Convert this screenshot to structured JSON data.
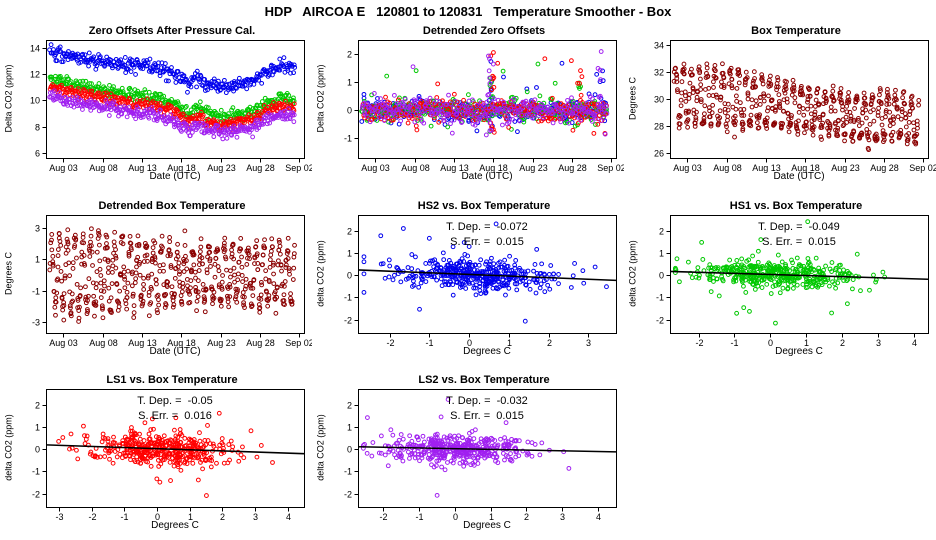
{
  "page_title": "HDP   AIRCOA E   120801 to 120831   Temperature Smoother - Box",
  "colors": {
    "blue": "#0000ee",
    "green": "#00c800",
    "red": "#ff0000",
    "purple": "#a020f0",
    "darkred": "#8b0000",
    "axis": "#000000"
  },
  "chart_data": [
    {
      "id": "zero-offsets",
      "type": "scatter",
      "title": "Zero Offsets After Pressure Cal.",
      "xlabel": "Date (UTC)",
      "ylabel": "Delta CO2 (ppm)",
      "xlim": [
        0.8,
        33.6
      ],
      "ylim": [
        5.6,
        14.6
      ],
      "xticks": {
        "pos": [
          3,
          8,
          13,
          18,
          23,
          28,
          33
        ],
        "labels": [
          "Aug 03",
          "Aug 08",
          "Aug 13",
          "Aug 18",
          "Aug 23",
          "Aug 28",
          "Sep 02"
        ]
      },
      "yticks": {
        "pos": [
          6,
          8,
          10,
          12,
          14
        ],
        "labels": [
          "6",
          "8",
          "10",
          "12",
          "14"
        ]
      },
      "series": [
        {
          "name": "HS2",
          "color": "blue",
          "kind": "trend",
          "n": 340,
          "noise": 0.27,
          "daily": 0.1,
          "xrange": [
            1.3,
            32.4
          ],
          "trend": [
            [
              1,
              13.7
            ],
            [
              5,
              13.2
            ],
            [
              9,
              12.9
            ],
            [
              13,
              12.6
            ],
            [
              16,
              12.3
            ],
            [
              18,
              11.7
            ],
            [
              19,
              11.2
            ],
            [
              20,
              11.8
            ],
            [
              21,
              11.3
            ],
            [
              23,
              11.0
            ],
            [
              25,
              11.1
            ],
            [
              27,
              11.5
            ],
            [
              29,
              12.2
            ],
            [
              31,
              12.6
            ],
            [
              32.4,
              12.4
            ]
          ]
        },
        {
          "name": "HS1",
          "color": "green",
          "kind": "trend",
          "n": 340,
          "noise": 0.23,
          "daily": 0.1,
          "xrange": [
            1.3,
            32.4
          ],
          "trend": [
            [
              1,
              11.7
            ],
            [
              5,
              11.1
            ],
            [
              9,
              10.7
            ],
            [
              13,
              10.3
            ],
            [
              16,
              10.0
            ],
            [
              18,
              9.4
            ],
            [
              19,
              8.9
            ],
            [
              20,
              9.5
            ],
            [
              21,
              9.1
            ],
            [
              23,
              8.8
            ],
            [
              25,
              8.9
            ],
            [
              27,
              9.2
            ],
            [
              29,
              9.8
            ],
            [
              31,
              10.1
            ],
            [
              32.4,
              10.0
            ]
          ]
        },
        {
          "name": "LS1",
          "color": "red",
          "kind": "trend",
          "n": 340,
          "noise": 0.23,
          "daily": 0.1,
          "xrange": [
            1.3,
            32.4
          ],
          "trend": [
            [
              1,
              11.1
            ],
            [
              5,
              10.5
            ],
            [
              9,
              10.1
            ],
            [
              13,
              9.7
            ],
            [
              16,
              9.4
            ],
            [
              18,
              8.8
            ],
            [
              19,
              8.3
            ],
            [
              20,
              8.9
            ],
            [
              21,
              8.5
            ],
            [
              23,
              8.2
            ],
            [
              25,
              8.3
            ],
            [
              27,
              8.6
            ],
            [
              29,
              9.2
            ],
            [
              31,
              9.5
            ],
            [
              32.4,
              9.4
            ]
          ]
        },
        {
          "name": "LS2",
          "color": "purple",
          "kind": "trend",
          "n": 340,
          "noise": 0.23,
          "daily": 0.1,
          "xrange": [
            1.3,
            32.4
          ],
          "trend": [
            [
              1,
              10.4
            ],
            [
              5,
              9.8
            ],
            [
              9,
              9.4
            ],
            [
              13,
              9.0
            ],
            [
              16,
              8.7
            ],
            [
              18,
              8.1
            ],
            [
              19,
              7.6
            ],
            [
              20,
              8.2
            ],
            [
              21,
              7.8
            ],
            [
              23,
              7.5
            ],
            [
              25,
              7.6
            ],
            [
              27,
              7.9
            ],
            [
              29,
              8.6
            ],
            [
              31,
              8.9
            ],
            [
              32.4,
              8.8
            ]
          ]
        }
      ]
    },
    {
      "id": "detrended-zero-offsets",
      "type": "scatter",
      "title": "Detrended Zero Offsets",
      "xlabel": "Date (UTC)",
      "ylabel": "Delta CO2 (ppm)",
      "xlim": [
        0.8,
        33.6
      ],
      "ylim": [
        -1.7,
        2.5
      ],
      "xticks": {
        "pos": [
          3,
          8,
          13,
          18,
          23,
          28,
          33
        ],
        "labels": [
          "Aug 03",
          "Aug 08",
          "Aug 13",
          "Aug 18",
          "Aug 23",
          "Aug 28",
          "Sep 02"
        ]
      },
      "yticks": {
        "pos": [
          -1,
          0,
          1,
          2
        ],
        "labels": [
          "-1",
          "0",
          "1",
          "2"
        ]
      },
      "series": [
        {
          "name": "HS2",
          "color": "blue",
          "kind": "trend",
          "n": 300,
          "noise": 0.2,
          "daily": 0,
          "xrange": [
            1.3,
            32.4
          ],
          "trend": [
            [
              1,
              0
            ],
            [
              32.4,
              0
            ]
          ],
          "outlier": {
            "p": 0.04,
            "lo": -1.0,
            "hi": 1.9
          },
          "bursts": [
            {
              "x": 17.6,
              "n": 9,
              "lo": -0.6,
              "hi": 2.2
            },
            {
              "x": 31.9,
              "n": 7,
              "lo": -0.5,
              "hi": 2.3
            }
          ]
        },
        {
          "name": "HS1",
          "color": "green",
          "kind": "trend",
          "n": 300,
          "noise": 0.2,
          "daily": 0,
          "xrange": [
            1.3,
            32.4
          ],
          "trend": [
            [
              1,
              0
            ],
            [
              32.4,
              0
            ]
          ],
          "outlier": {
            "p": 0.04,
            "lo": -0.9,
            "hi": 1.7
          },
          "bursts": [
            {
              "x": 17.7,
              "n": 9,
              "lo": -0.8,
              "hi": 1.8
            },
            {
              "x": 28.8,
              "n": 5,
              "lo": -0.3,
              "hi": 1.5
            }
          ]
        },
        {
          "name": "LS1",
          "color": "red",
          "kind": "trend",
          "n": 300,
          "noise": 0.2,
          "daily": 0,
          "xrange": [
            1.3,
            32.4
          ],
          "trend": [
            [
              1,
              0
            ],
            [
              32.4,
              0
            ]
          ],
          "outlier": {
            "p": 0.045,
            "lo": -1.0,
            "hi": 2.0
          },
          "bursts": [
            {
              "x": 17.9,
              "n": 11,
              "lo": -0.9,
              "hi": 2.2
            },
            {
              "x": 29.1,
              "n": 7,
              "lo": -0.5,
              "hi": 2.0
            }
          ]
        },
        {
          "name": "LS2",
          "color": "purple",
          "kind": "trend",
          "n": 300,
          "noise": 0.2,
          "daily": 0,
          "xrange": [
            1.3,
            32.4
          ],
          "trend": [
            [
              1,
              0
            ],
            [
              32.4,
              0
            ]
          ],
          "outlier": {
            "p": 0.045,
            "lo": -1.1,
            "hi": 1.9
          },
          "bursts": [
            {
              "x": 17.5,
              "n": 11,
              "lo": -1.1,
              "hi": 2.0
            },
            {
              "x": 31.6,
              "n": 7,
              "lo": -0.6,
              "hi": 2.2
            }
          ]
        }
      ]
    },
    {
      "id": "box-temperature",
      "type": "scatter",
      "title": "Box Temperature",
      "xlabel": "Date (UTC)",
      "ylabel": "Degrees C",
      "xlim": [
        0.8,
        33.6
      ],
      "ylim": [
        25.6,
        34.4
      ],
      "xticks": {
        "pos": [
          3,
          8,
          13,
          18,
          23,
          28,
          33
        ],
        "labels": [
          "Aug 03",
          "Aug 08",
          "Aug 13",
          "Aug 18",
          "Aug 23",
          "Aug 28",
          "Sep 02"
        ]
      },
      "yticks": {
        "pos": [
          26,
          28,
          30,
          32,
          34
        ],
        "labels": [
          "26",
          "28",
          "30",
          "32",
          "34"
        ]
      },
      "series": [
        {
          "name": "box-temp",
          "color": "darkred",
          "kind": "trend",
          "n": 620,
          "noise": 0.3,
          "xrange": [
            1.3,
            32.4
          ],
          "trend": [
            [
              1,
              30.3
            ],
            [
              6,
              30.1
            ],
            [
              10,
              29.9
            ],
            [
              14,
              29.6
            ],
            [
              18,
              29.2
            ],
            [
              22,
              28.9
            ],
            [
              26,
              28.4
            ],
            [
              29,
              28.9
            ],
            [
              32.4,
              28.3
            ]
          ],
          "amp": [
            [
              1,
              2.1
            ],
            [
              8,
              2.2
            ],
            [
              12,
              1.8
            ],
            [
              16,
              1.7
            ],
            [
              20,
              1.5
            ],
            [
              24,
              1.5
            ],
            [
              28,
              1.8
            ],
            [
              32.4,
              1.5
            ]
          ]
        }
      ]
    },
    {
      "id": "detrended-box-temperature",
      "type": "scatter",
      "title": "Detrended Box Temperature",
      "xlabel": "Date (UTC)",
      "ylabel": "Degrees C",
      "xlim": [
        0.8,
        33.6
      ],
      "ylim": [
        -3.7,
        3.8
      ],
      "xticks": {
        "pos": [
          3,
          8,
          13,
          18,
          23,
          28,
          33
        ],
        "labels": [
          "Aug 03",
          "Aug 08",
          "Aug 13",
          "Aug 18",
          "Aug 23",
          "Aug 28",
          "Sep 02"
        ]
      },
      "yticks": {
        "pos": [
          -3,
          -1,
          1,
          3
        ],
        "labels": [
          "-3",
          "-1",
          "1",
          "3"
        ]
      },
      "series": [
        {
          "name": "detrended-box-temp",
          "color": "darkred",
          "kind": "trend",
          "n": 620,
          "noise": 0.35,
          "xrange": [
            1.3,
            32.4
          ],
          "trend": [
            [
              1,
              0
            ],
            [
              32.4,
              0
            ]
          ],
          "amp": [
            [
              1,
              2.3
            ],
            [
              8,
              2.4
            ],
            [
              12,
              2.0
            ],
            [
              16,
              1.9
            ],
            [
              20,
              1.7
            ],
            [
              24,
              1.7
            ],
            [
              28,
              2.0
            ],
            [
              32.4,
              1.7
            ]
          ]
        }
      ]
    },
    {
      "id": "hs2-vs-box-temperature",
      "type": "scatter",
      "title": "HS2 vs. Box Temperature",
      "xlabel": "Degrees C",
      "ylabel": "delta CO2 (ppm)",
      "xlim": [
        -2.8,
        3.7
      ],
      "ylim": [
        -2.6,
        2.7
      ],
      "xticks": {
        "pos": [
          -2,
          -1,
          0,
          1,
          2,
          3
        ],
        "labels": [
          "-2",
          "-1",
          "0",
          "1",
          "2",
          "3"
        ]
      },
      "yticks": {
        "pos": [
          -2,
          -1,
          0,
          1,
          2
        ],
        "labels": [
          "-2",
          "-1",
          "0",
          "1",
          "2"
        ]
      },
      "stats": {
        "t_dep": -0.072,
        "s_err": 0.015
      },
      "annotations": [
        "T. Dep. =  -0.072",
        "S. Err. =  0.015"
      ],
      "fit": {
        "slope": -0.072,
        "intercept": 0.03
      },
      "series": [
        {
          "name": "HS2",
          "color": "blue",
          "kind": "cloud",
          "n": 430,
          "xmean": 0.15,
          "xsd": 1.05,
          "slope": -0.072,
          "intercept": 0.03,
          "ynoise": 0.33
        }
      ]
    },
    {
      "id": "hs1-vs-box-temperature",
      "type": "scatter",
      "title": "HS1 vs. Box Temperature",
      "xlabel": "Degrees C",
      "ylabel": "delta CO2 (ppm)",
      "xlim": [
        -2.8,
        4.4
      ],
      "ylim": [
        -2.6,
        2.7
      ],
      "xticks": {
        "pos": [
          -2,
          -1,
          0,
          1,
          2,
          3,
          4
        ],
        "labels": [
          "-2",
          "-1",
          "0",
          "1",
          "2",
          "3",
          "4"
        ]
      },
      "yticks": {
        "pos": [
          -2,
          -1,
          0,
          1,
          2
        ],
        "labels": [
          "-2",
          "-1",
          "0",
          "1",
          "2"
        ]
      },
      "stats": {
        "t_dep": -0.049,
        "s_err": 0.015
      },
      "annotations": [
        "T. Dep. =  -0.049",
        "S. Err. =  0.015"
      ],
      "fit": {
        "slope": -0.049,
        "intercept": 0.03
      },
      "series": [
        {
          "name": "HS1",
          "color": "green",
          "kind": "cloud",
          "n": 430,
          "xmean": 0.15,
          "xsd": 1.05,
          "slope": -0.049,
          "intercept": 0.03,
          "ynoise": 0.3
        }
      ]
    },
    {
      "id": "ls1-vs-box-temperature",
      "type": "scatter",
      "title": "LS1 vs. Box Temperature",
      "xlabel": "Degrees C",
      "ylabel": "delta CO2 (ppm)",
      "xlim": [
        -3.4,
        4.5
      ],
      "ylim": [
        -2.6,
        2.7
      ],
      "xticks": {
        "pos": [
          -3,
          -2,
          -1,
          0,
          1,
          2,
          3,
          4
        ],
        "labels": [
          "-3",
          "-2",
          "-1",
          "0",
          "1",
          "2",
          "3",
          "4"
        ]
      },
      "yticks": {
        "pos": [
          -2,
          -1,
          0,
          1,
          2
        ],
        "labels": [
          "-2",
          "-1",
          "0",
          "1",
          "2"
        ]
      },
      "stats": {
        "t_dep": -0.05,
        "s_err": 0.016
      },
      "annotations": [
        "T. Dep. =  -0.05",
        "S. Err. =  0.016"
      ],
      "fit": {
        "slope": -0.05,
        "intercept": 0.02
      },
      "series": [
        {
          "name": "LS1",
          "color": "red",
          "kind": "cloud",
          "n": 430,
          "xmean": 0.1,
          "xsd": 1.1,
          "slope": -0.05,
          "intercept": 0.02,
          "ynoise": 0.35
        }
      ]
    },
    {
      "id": "ls2-vs-box-temperature",
      "type": "scatter",
      "title": "LS2 vs. Box Temperature",
      "xlabel": "Degrees C",
      "ylabel": "delta CO2 (ppm)",
      "xlim": [
        -2.7,
        4.5
      ],
      "ylim": [
        -2.6,
        2.7
      ],
      "xticks": {
        "pos": [
          -2,
          -1,
          0,
          1,
          2,
          3,
          4
        ],
        "labels": [
          "-2",
          "-1",
          "0",
          "1",
          "2",
          "3",
          "4"
        ]
      },
      "yticks": {
        "pos": [
          -2,
          -1,
          0,
          1,
          2
        ],
        "labels": [
          "-2",
          "-1",
          "0",
          "1",
          "2"
        ]
      },
      "stats": {
        "t_dep": -0.032,
        "s_err": 0.015
      },
      "annotations": [
        "T. Dep. =  -0.032",
        "S. Err. =  0.015"
      ],
      "fit": {
        "slope": -0.032,
        "intercept": 0.02
      },
      "series": [
        {
          "name": "LS2",
          "color": "purple",
          "kind": "cloud",
          "n": 430,
          "xmean": 0.15,
          "xsd": 1.0,
          "slope": -0.032,
          "intercept": 0.02,
          "ynoise": 0.3
        }
      ]
    }
  ]
}
